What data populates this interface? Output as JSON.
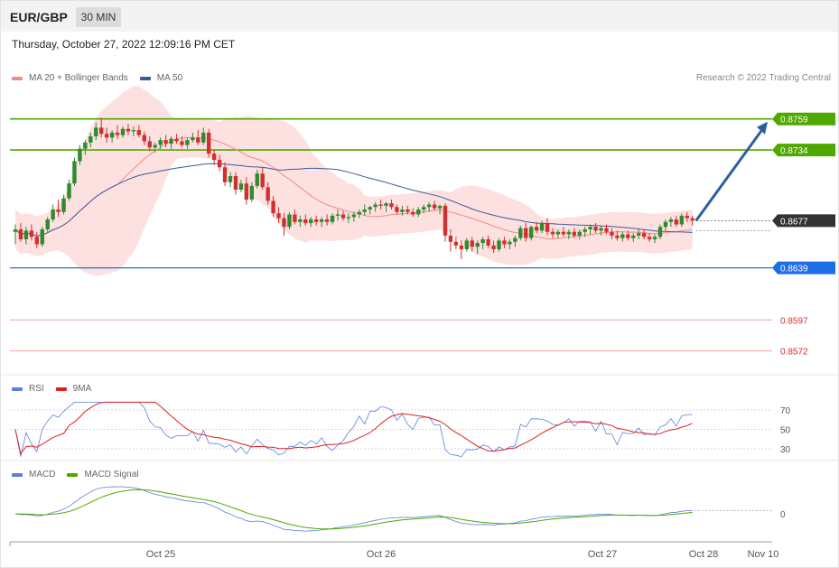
{
  "header": {
    "symbol": "EUR/GBP",
    "timeframe": "30 MIN",
    "datetime": "Thursday, October 27, 2022 12:09:16 PM CET",
    "copyright": "Research © 2022 Trading Central"
  },
  "legend": {
    "ma20_label": "MA 20 + Bollinger Bands",
    "ma50_label": "MA 50",
    "rsi_label": "RSI",
    "rsi_ma_label": "9MA",
    "macd_label": "MACD",
    "macd_signal_label": "MACD Signal"
  },
  "colors": {
    "bull": "#2e8b2e",
    "bear": "#d32f2f",
    "ma20": "#f28a8a",
    "bands_fill": "#fde0e0",
    "ma50": "#3c5a99",
    "resistance": "#4ea800",
    "support_strong": "#1e6fe6",
    "support_weak": "#d32f2f",
    "current": "#333333",
    "arrow": "#2d5f9e",
    "rsi": "#5b7fe0",
    "rsi_ma": "#e02020",
    "macd": "#5b7fe0",
    "macd_signal": "#4ea800"
  },
  "chart_data": [
    {
      "type": "candlestick",
      "title": "EUR/GBP",
      "timeframe": "30 MIN",
      "x_ticks": [
        "Oct 25",
        "Oct 26",
        "Oct 27",
        "Oct 28",
        "Nov 10"
      ],
      "ylim": [
        0.8555,
        0.8785
      ],
      "candles": [
        [
          0.8668,
          0.8674,
          0.8658,
          0.867
        ],
        [
          0.867,
          0.8675,
          0.866,
          0.8662
        ],
        [
          0.8662,
          0.8672,
          0.8658,
          0.8669
        ],
        [
          0.8669,
          0.8674,
          0.8661,
          0.8664
        ],
        [
          0.8664,
          0.8668,
          0.8655,
          0.8658
        ],
        [
          0.8658,
          0.8672,
          0.8656,
          0.867
        ],
        [
          0.867,
          0.868,
          0.8668,
          0.8678
        ],
        [
          0.8678,
          0.869,
          0.8676,
          0.8686
        ],
        [
          0.8686,
          0.8694,
          0.868,
          0.8684
        ],
        [
          0.8684,
          0.8698,
          0.8682,
          0.8695
        ],
        [
          0.8695,
          0.871,
          0.8693,
          0.8707
        ],
        [
          0.8707,
          0.8728,
          0.8705,
          0.8725
        ],
        [
          0.8725,
          0.8738,
          0.8722,
          0.8735
        ],
        [
          0.8735,
          0.8742,
          0.873,
          0.874
        ],
        [
          0.874,
          0.8748,
          0.8736,
          0.8745
        ],
        [
          0.8745,
          0.8756,
          0.8742,
          0.8752
        ],
        [
          0.8752,
          0.876,
          0.8744,
          0.8747
        ],
        [
          0.8747,
          0.8752,
          0.874,
          0.8744
        ],
        [
          0.8744,
          0.875,
          0.874,
          0.8748
        ],
        [
          0.8748,
          0.8754,
          0.8743,
          0.8746
        ],
        [
          0.8746,
          0.8753,
          0.8744,
          0.8751
        ],
        [
          0.8751,
          0.8755,
          0.8746,
          0.8749
        ],
        [
          0.8749,
          0.8753,
          0.8745,
          0.875
        ],
        [
          0.875,
          0.8754,
          0.8744,
          0.8746
        ],
        [
          0.8746,
          0.8749,
          0.8738,
          0.8741
        ],
        [
          0.8741,
          0.8745,
          0.8733,
          0.8736
        ],
        [
          0.8736,
          0.874,
          0.8732,
          0.8738
        ],
        [
          0.8738,
          0.8744,
          0.8735,
          0.8742
        ],
        [
          0.8742,
          0.8746,
          0.8736,
          0.8739
        ],
        [
          0.8739,
          0.8745,
          0.8735,
          0.8743
        ],
        [
          0.8743,
          0.8747,
          0.8739,
          0.8741
        ],
        [
          0.8741,
          0.8745,
          0.8736,
          0.8738
        ],
        [
          0.8738,
          0.8744,
          0.8735,
          0.8742
        ],
        [
          0.8742,
          0.8748,
          0.874,
          0.8744
        ],
        [
          0.8744,
          0.875,
          0.8738,
          0.874
        ],
        [
          0.874,
          0.8752,
          0.8738,
          0.8748
        ],
        [
          0.8748,
          0.8751,
          0.8728,
          0.8731
        ],
        [
          0.8731,
          0.8734,
          0.8722,
          0.8726
        ],
        [
          0.8726,
          0.873,
          0.8717,
          0.872
        ],
        [
          0.872,
          0.8724,
          0.8705,
          0.8708
        ],
        [
          0.8708,
          0.8716,
          0.8704,
          0.8713
        ],
        [
          0.8713,
          0.8716,
          0.8698,
          0.8702
        ],
        [
          0.8702,
          0.871,
          0.87,
          0.8707
        ],
        [
          0.8707,
          0.8712,
          0.869,
          0.8694
        ],
        [
          0.8694,
          0.8708,
          0.8692,
          0.8705
        ],
        [
          0.8705,
          0.8718,
          0.8703,
          0.8715
        ],
        [
          0.8715,
          0.872,
          0.8702,
          0.8704
        ],
        [
          0.8704,
          0.8708,
          0.869,
          0.8693
        ],
        [
          0.8693,
          0.8697,
          0.868,
          0.8683
        ],
        [
          0.8683,
          0.8688,
          0.8675,
          0.8679
        ],
        [
          0.8679,
          0.8683,
          0.8665,
          0.8672
        ],
        [
          0.8672,
          0.8684,
          0.867,
          0.8682
        ],
        [
          0.8682,
          0.8686,
          0.8674,
          0.8676
        ],
        [
          0.8676,
          0.8681,
          0.8672,
          0.8678
        ],
        [
          0.8678,
          0.8682,
          0.8673,
          0.8675
        ],
        [
          0.8675,
          0.868,
          0.8672,
          0.8678
        ],
        [
          0.8678,
          0.8681,
          0.8673,
          0.8676
        ],
        [
          0.8676,
          0.868,
          0.8672,
          0.8678
        ],
        [
          0.8678,
          0.8682,
          0.8673,
          0.8676
        ],
        [
          0.8676,
          0.8683,
          0.8674,
          0.8681
        ],
        [
          0.8681,
          0.8686,
          0.8677,
          0.8682
        ],
        [
          0.8682,
          0.8685,
          0.8677,
          0.8679
        ],
        [
          0.8679,
          0.8683,
          0.8675,
          0.868
        ],
        [
          0.868,
          0.8684,
          0.8676,
          0.8682
        ],
        [
          0.8682,
          0.8686,
          0.8679,
          0.8684
        ],
        [
          0.8684,
          0.869,
          0.8681,
          0.8686
        ],
        [
          0.8686,
          0.8689,
          0.8682,
          0.8688
        ],
        [
          0.8688,
          0.8692,
          0.8684,
          0.869
        ],
        [
          0.869,
          0.8694,
          0.8686,
          0.8689
        ],
        [
          0.8689,
          0.8692,
          0.8684,
          0.8691
        ],
        [
          0.8691,
          0.8694,
          0.8686,
          0.8688
        ],
        [
          0.8688,
          0.869,
          0.8682,
          0.8684
        ],
        [
          0.8684,
          0.8689,
          0.8681,
          0.8686
        ],
        [
          0.8686,
          0.8689,
          0.8682,
          0.8684
        ],
        [
          0.8684,
          0.8687,
          0.868,
          0.8682
        ],
        [
          0.8682,
          0.8688,
          0.868,
          0.8686
        ],
        [
          0.8686,
          0.869,
          0.8683,
          0.8688
        ],
        [
          0.8688,
          0.8692,
          0.8684,
          0.869
        ],
        [
          0.869,
          0.8693,
          0.8685,
          0.8687
        ],
        [
          0.8687,
          0.869,
          0.8682,
          0.8689
        ],
        [
          0.8689,
          0.8691,
          0.866,
          0.8665
        ],
        [
          0.8665,
          0.867,
          0.8652,
          0.866
        ],
        [
          0.866,
          0.8664,
          0.8654,
          0.8657
        ],
        [
          0.8657,
          0.8661,
          0.8646,
          0.8654
        ],
        [
          0.8654,
          0.8663,
          0.8652,
          0.8661
        ],
        [
          0.8661,
          0.8664,
          0.8652,
          0.8656
        ],
        [
          0.8656,
          0.8661,
          0.865,
          0.8659
        ],
        [
          0.8659,
          0.8664,
          0.8654,
          0.8662
        ],
        [
          0.8662,
          0.8665,
          0.8655,
          0.8657
        ],
        [
          0.8657,
          0.8661,
          0.8651,
          0.8654
        ],
        [
          0.8654,
          0.8663,
          0.8652,
          0.8661
        ],
        [
          0.8661,
          0.8664,
          0.8655,
          0.8658
        ],
        [
          0.8658,
          0.8662,
          0.8654,
          0.866
        ],
        [
          0.866,
          0.8665,
          0.8656,
          0.8663
        ],
        [
          0.8663,
          0.8673,
          0.8661,
          0.8671
        ],
        [
          0.8671,
          0.8675,
          0.866,
          0.8663
        ],
        [
          0.8663,
          0.8673,
          0.8661,
          0.8672
        ],
        [
          0.8672,
          0.8676,
          0.8667,
          0.8669
        ],
        [
          0.8669,
          0.8677,
          0.8667,
          0.8675
        ],
        [
          0.8675,
          0.8679,
          0.8665,
          0.8668
        ],
        [
          0.8668,
          0.8671,
          0.8663,
          0.8666
        ],
        [
          0.8666,
          0.867,
          0.8663,
          0.8668
        ],
        [
          0.8668,
          0.8672,
          0.8664,
          0.8666
        ],
        [
          0.8666,
          0.867,
          0.8662,
          0.8668
        ],
        [
          0.8668,
          0.8671,
          0.8663,
          0.8665
        ],
        [
          0.8665,
          0.867,
          0.8662,
          0.8668
        ],
        [
          0.8668,
          0.8672,
          0.8664,
          0.867
        ],
        [
          0.867,
          0.8674,
          0.8666,
          0.8672
        ],
        [
          0.8672,
          0.8675,
          0.8667,
          0.8669
        ],
        [
          0.8669,
          0.8673,
          0.8665,
          0.8671
        ],
        [
          0.8671,
          0.8674,
          0.8666,
          0.8668
        ],
        [
          0.8668,
          0.8671,
          0.8662,
          0.8665
        ],
        [
          0.8665,
          0.8669,
          0.8661,
          0.8663
        ],
        [
          0.8663,
          0.8668,
          0.866,
          0.8666
        ],
        [
          0.8666,
          0.8669,
          0.8661,
          0.8663
        ],
        [
          0.8663,
          0.8667,
          0.866,
          0.8665
        ],
        [
          0.8665,
          0.867,
          0.8662,
          0.8667
        ],
        [
          0.8667,
          0.867,
          0.8662,
          0.8664
        ],
        [
          0.8664,
          0.8667,
          0.866,
          0.8662
        ],
        [
          0.8662,
          0.8666,
          0.8659,
          0.8664
        ],
        [
          0.8664,
          0.8674,
          0.8662,
          0.8672
        ],
        [
          0.8672,
          0.8678,
          0.8669,
          0.8676
        ],
        [
          0.8676,
          0.868,
          0.8672,
          0.8678
        ],
        [
          0.8678,
          0.8681,
          0.8672,
          0.8674
        ],
        [
          0.8674,
          0.8683,
          0.8672,
          0.8681
        ],
        [
          0.8681,
          0.8684,
          0.8676,
          0.8679
        ],
        [
          0.8679,
          0.8681,
          0.8673,
          0.8677
        ]
      ],
      "current_price": 0.8677,
      "levels": [
        {
          "value": 0.8759,
          "label": "0.8759",
          "kind": "resistance"
        },
        {
          "value": 0.8734,
          "label": "0.8734",
          "kind": "resistance"
        },
        {
          "value": 0.8677,
          "label": "0.8677",
          "kind": "current"
        },
        {
          "value": 0.8639,
          "label": "0.8639",
          "kind": "support_strong"
        },
        {
          "value": 0.8597,
          "label": "0.8597",
          "kind": "support_weak"
        },
        {
          "value": 0.8572,
          "label": "0.8572",
          "kind": "support_weak"
        }
      ],
      "projection": {
        "from": 0.8677,
        "to": 0.8759
      },
      "indicators": [
        "MA 20 + Bollinger Bands",
        "MA 50"
      ]
    },
    {
      "type": "line",
      "title": "RSI",
      "ylim": [
        20,
        80
      ],
      "y_ticks": [
        70,
        50,
        30
      ],
      "series": [
        {
          "name": "RSI"
        },
        {
          "name": "9MA"
        }
      ]
    },
    {
      "type": "line",
      "title": "MACD",
      "y_ticks": [
        0
      ],
      "series": [
        {
          "name": "MACD"
        },
        {
          "name": "MACD Signal"
        }
      ]
    }
  ]
}
